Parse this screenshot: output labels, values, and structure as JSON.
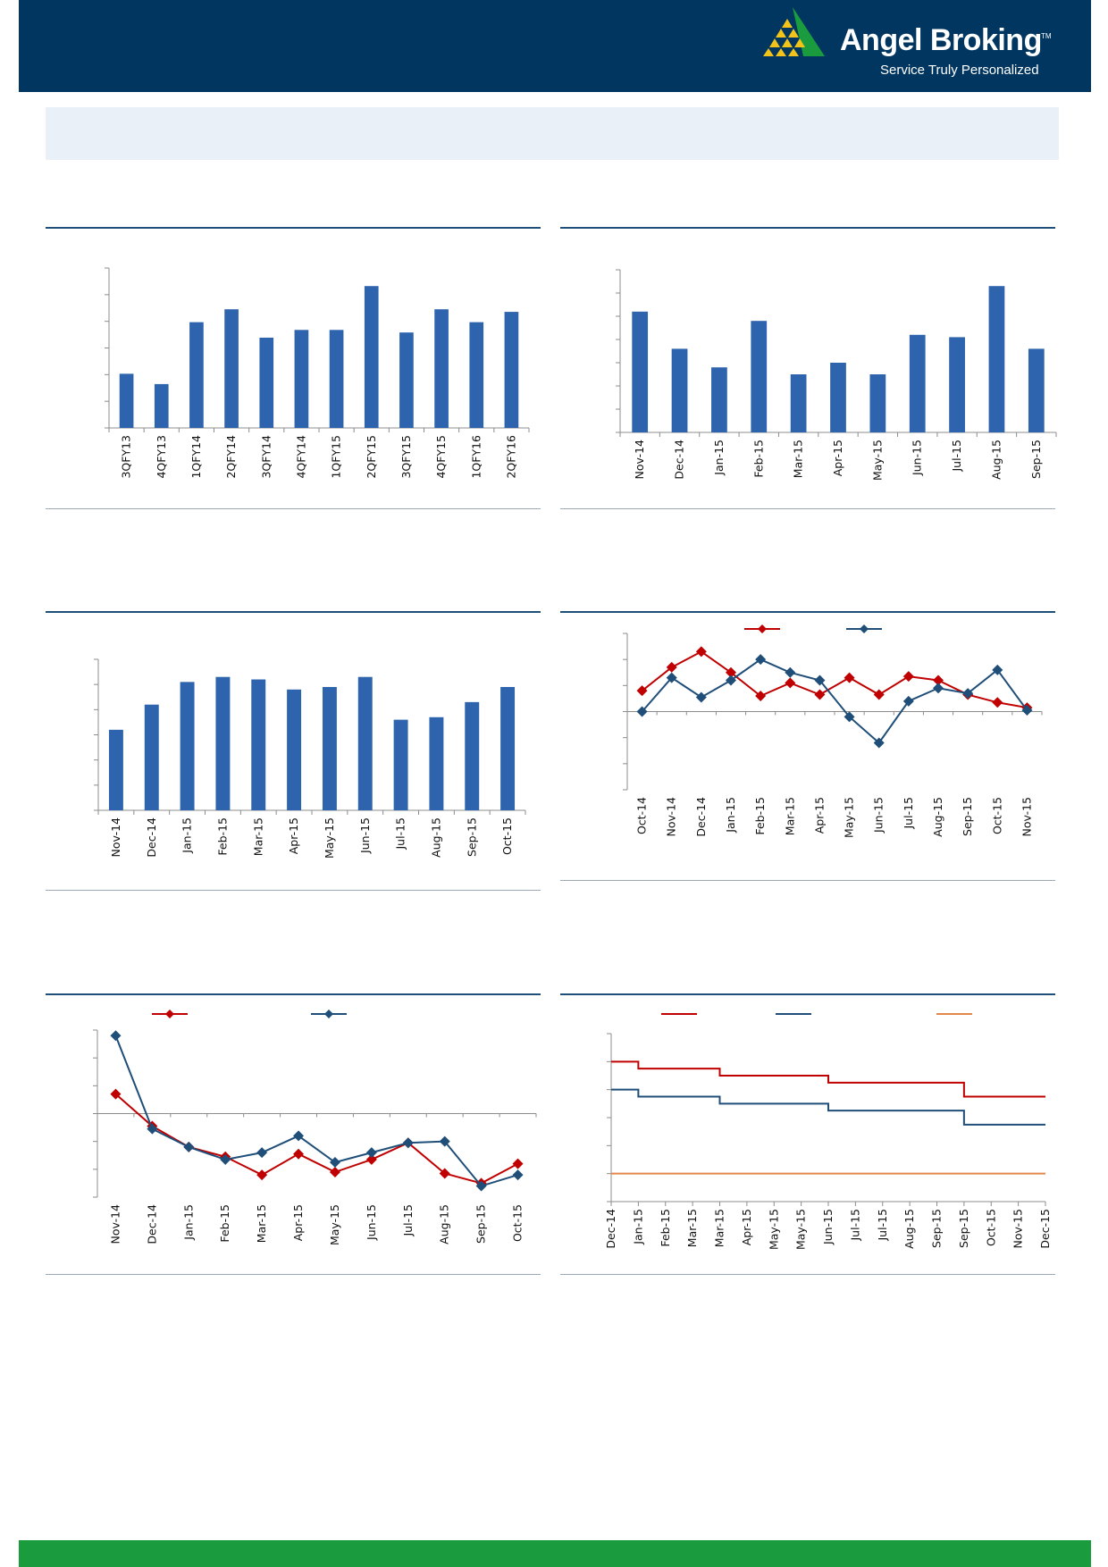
{
  "brand": {
    "name": "Angel Broking",
    "trademark": "TM",
    "tagline": "Service Truly Personalized"
  },
  "colors": {
    "header_bg": "#003660",
    "banner_bg": "#eaf0f8",
    "footer_bg": "#1a9c3e",
    "bar": "#2e63ad",
    "series_red": "#c00000",
    "series_blue": "#1f4e79",
    "series_orange": "#e3874b",
    "logo_green": "#1a9c3e",
    "logo_gold": "#f2c318"
  },
  "chart_data": [
    {
      "type": "bar",
      "categories": [
        "3QFY13",
        "4QFY13",
        "1QFY14",
        "2QFY14",
        "3QFY14",
        "4QFY14",
        "1QFY15",
        "2QFY15",
        "3QFY15",
        "4QFY15",
        "1QFY16",
        "2QFY16"
      ],
      "values": [
        2.1,
        1.7,
        4.1,
        4.6,
        3.5,
        3.8,
        3.8,
        5.5,
        3.7,
        4.6,
        4.1,
        4.5
      ],
      "ylim": [
        0,
        6.2
      ],
      "yticks": 6,
      "grid": false,
      "color": "#2e63ad"
    },
    {
      "type": "bar",
      "categories": [
        "Nov-14",
        "Dec-14",
        "Jan-15",
        "Feb-15",
        "Mar-15",
        "Apr-15",
        "May-15",
        "Jun-15",
        "Jul-15",
        "Aug-15",
        "Sep-15"
      ],
      "values": [
        5.2,
        3.6,
        2.8,
        4.8,
        2.5,
        3.0,
        2.5,
        4.2,
        4.1,
        6.3,
        3.6
      ],
      "ylim": [
        0,
        7
      ],
      "yticks": 7,
      "grid": false,
      "color": "#2e63ad"
    },
    {
      "type": "bar",
      "categories": [
        "Nov-14",
        "Dec-14",
        "Jan-15",
        "Feb-15",
        "Mar-15",
        "Apr-15",
        "May-15",
        "Jun-15",
        "Jul-15",
        "Aug-15",
        "Sep-15",
        "Oct-15"
      ],
      "values": [
        3.2,
        4.2,
        5.1,
        5.3,
        5.2,
        4.8,
        4.9,
        5.3,
        3.6,
        3.7,
        4.3,
        4.9
      ],
      "ylim": [
        0,
        6
      ],
      "yticks": 6,
      "grid": false,
      "color": "#2e63ad"
    },
    {
      "type": "line",
      "x": [
        "Oct-14",
        "Nov-14",
        "Dec-14",
        "Jan-15",
        "Feb-15",
        "Mar-15",
        "Apr-15",
        "May-15",
        "Jun-15",
        "Jul-15",
        "Aug-15",
        "Sep-15",
        "Oct-15",
        "Nov-15"
      ],
      "series": [
        {
          "color": "#c00000",
          "marker": "diamond",
          "values": [
            0.8,
            1.7,
            2.3,
            1.5,
            0.6,
            1.1,
            0.65,
            1.3,
            0.65,
            1.35,
            1.2,
            0.65,
            0.35,
            0.15
          ]
        },
        {
          "color": "#1f4e79",
          "marker": "diamond",
          "values": [
            0.0,
            1.3,
            0.55,
            1.2,
            2.0,
            1.5,
            1.2,
            -0.2,
            -1.2,
            0.4,
            0.9,
            0.7,
            1.6,
            0.05
          ]
        }
      ],
      "ylim": [
        -3,
        3
      ],
      "yticks": 6,
      "legend": "top",
      "grid": false
    },
    {
      "type": "line",
      "x": [
        "Nov-14",
        "Dec-14",
        "Jan-15",
        "Feb-15",
        "Mar-15",
        "Apr-15",
        "May-15",
        "Jun-15",
        "Jul-15",
        "Aug-15",
        "Sep-15",
        "Oct-15"
      ],
      "series": [
        {
          "color": "#c00000",
          "marker": "diamond",
          "values": [
            0.7,
            -0.45,
            -1.2,
            -1.55,
            -2.2,
            -1.45,
            -2.1,
            -1.65,
            -1.05,
            -2.15,
            -2.5,
            -1.8
          ]
        },
        {
          "color": "#1f4e79",
          "marker": "diamond",
          "values": [
            2.8,
            -0.55,
            -1.2,
            -1.65,
            -1.4,
            -0.8,
            -1.75,
            -1.4,
            -1.05,
            -1.0,
            -2.6,
            -2.2
          ]
        }
      ],
      "ylim": [
        -3,
        3
      ],
      "yticks": 6,
      "legend": "top",
      "grid": false
    },
    {
      "type": "line",
      "x": [
        "Dec-14",
        "Jan-15",
        "Feb-15",
        "Mar-15",
        "Mar-15",
        "Apr-15",
        "May-15",
        "May-15",
        "Jun-15",
        "Jul-15",
        "Jul-15",
        "Aug-15",
        "Sep-15",
        "Sep-15",
        "Oct-15",
        "Nov-15",
        "Dec-15"
      ],
      "series": [
        {
          "color": "#c00000",
          "values": [
            8.0,
            7.75,
            7.75,
            7.75,
            7.5,
            7.5,
            7.5,
            7.5,
            7.25,
            7.25,
            7.25,
            7.25,
            7.25,
            6.75,
            6.75,
            6.75,
            6.75
          ]
        },
        {
          "color": "#1f4e79",
          "values": [
            7.0,
            6.75,
            6.75,
            6.75,
            6.5,
            6.5,
            6.5,
            6.5,
            6.25,
            6.25,
            6.25,
            6.25,
            6.25,
            5.75,
            5.75,
            5.75,
            5.75
          ]
        },
        {
          "color": "#e3874b",
          "values": [
            4.0,
            4.0,
            4.0,
            4.0,
            4.0,
            4.0,
            4.0,
            4.0,
            4.0,
            4.0,
            4.0,
            4.0,
            4.0,
            4.0,
            4.0,
            4.0,
            4.0
          ]
        }
      ],
      "ylim": [
        3,
        9
      ],
      "yticks": 6,
      "legend": "top",
      "grid": false
    }
  ]
}
